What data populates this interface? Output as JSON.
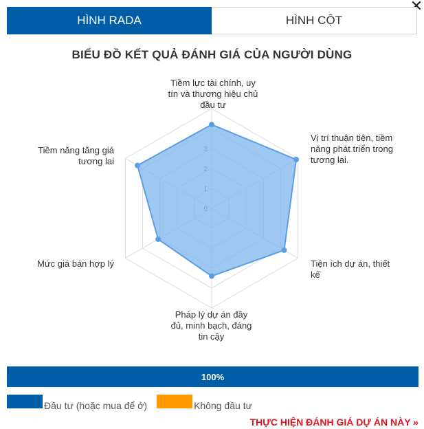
{
  "tabs": [
    {
      "label": "HÌNH RADA",
      "active": true
    },
    {
      "label": "HÌNH CỘT",
      "active": false
    }
  ],
  "close_icon": "close-icon",
  "chart_data": {
    "type": "radar",
    "title": "BIỂU ĐỒ KẾT QUẢ ĐÁNH GIÁ CỦA NGƯỜI DÙNG",
    "categories": [
      "Tiềm lực tài chính, uy tín và thương hiệu chủ đầu tư",
      "Vị trí thuận tiện, tiềm năng phát triển trong tương lai.",
      "Tiện ích dự án, thiết kế",
      "Pháp lý dự án đầy đủ, minh bạch, đáng tin cậy",
      "Mức giá bán hợp lý",
      "Tiềm năng tăng giá tương lai"
    ],
    "tick_labels": [
      "0",
      "1",
      "2",
      "3"
    ],
    "rlim": [
      0,
      5
    ],
    "series": [
      {
        "values": [
          4.2,
          4.9,
          4.2,
          3.4,
          3.1,
          4.3
        ],
        "color": "#7eb6ee"
      }
    ],
    "grid": true
  },
  "progress": {
    "label": "100%",
    "value": 1.0,
    "color": "#005ea8"
  },
  "legend": [
    {
      "label": "Đầu tư (hoặc mua để ở)",
      "color": "#005ea8"
    },
    {
      "label": "Không đầu tư",
      "color": "#ff9900"
    }
  ],
  "cta": "THỰC HIỆN ĐÁNH GIÁ DỰ ÁN NÀY »"
}
